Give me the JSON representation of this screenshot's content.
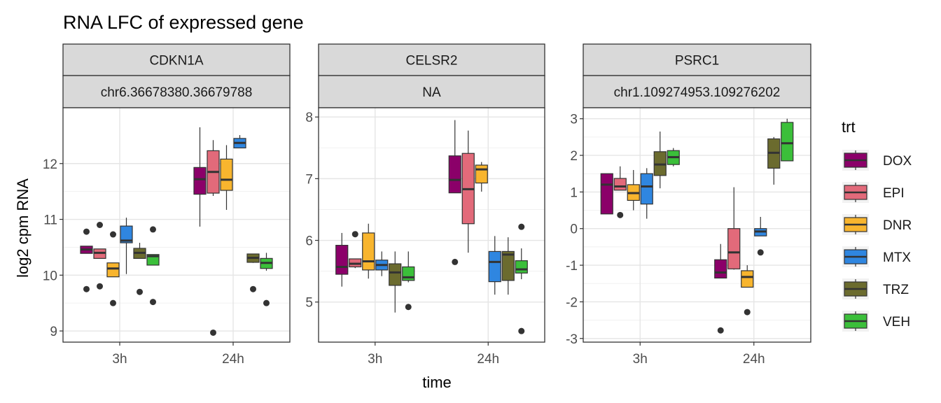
{
  "chart_data": {
    "type": "box",
    "title": "RNA LFC of expressed gene",
    "xlabel": "time",
    "ylabel": "log2 cpm RNA",
    "legend": {
      "title": "trt",
      "position": "right"
    },
    "groups": [
      "DOX",
      "EPI",
      "DNR",
      "MTX",
      "TRZ",
      "VEH"
    ],
    "colors": {
      "DOX": "#8B0069",
      "EPI": "#E26A7A",
      "DNR": "#F8B52E",
      "MTX": "#2F86E0",
      "TRZ": "#6B6B2E",
      "VEH": "#3BBF3A"
    },
    "x_categories": [
      "3h",
      "24h"
    ],
    "panels": [
      {
        "strip_top": "CDKN1A",
        "strip_bottom": "chr6.36678380.36679788",
        "ylim": [
          8.8,
          13.0
        ],
        "yticks": [
          9,
          10,
          11,
          12
        ],
        "boxes": {
          "3h": [
            {
              "trt": "DOX",
              "wlo": 10.43,
              "q1": 10.39,
              "median": 10.46,
              "q3": 10.52,
              "whi": 10.52,
              "outliers": [
                10.78,
                9.75
              ]
            },
            {
              "trt": "EPI",
              "wlo": 10.33,
              "q1": 10.3,
              "median": 10.4,
              "q3": 10.47,
              "whi": 10.47,
              "outliers": [
                10.9,
                9.8
              ]
            },
            {
              "trt": "DNR",
              "wlo": 9.98,
              "q1": 9.97,
              "median": 10.12,
              "q3": 10.22,
              "whi": 10.22,
              "outliers": [
                10.73,
                9.5
              ]
            },
            {
              "trt": "MTX",
              "wlo": 10.02,
              "q1": 10.58,
              "median": 10.62,
              "q3": 10.88,
              "whi": 11.03,
              "outliers": []
            },
            {
              "trt": "TRZ",
              "wlo": 10.3,
              "q1": 10.3,
              "median": 10.4,
              "q3": 10.48,
              "whi": 10.58,
              "outliers": [
                9.7
              ]
            },
            {
              "trt": "VEH",
              "wlo": 10.18,
              "q1": 10.18,
              "median": 10.34,
              "q3": 10.37,
              "whi": 10.37,
              "outliers": [
                10.82,
                9.52
              ]
            }
          ],
          "24h": [
            {
              "trt": "DOX",
              "wlo": 10.87,
              "q1": 11.45,
              "median": 11.72,
              "q3": 11.93,
              "whi": 12.65,
              "outliers": []
            },
            {
              "trt": "EPI",
              "wlo": 11.42,
              "q1": 11.47,
              "median": 11.85,
              "q3": 12.23,
              "whi": 12.42,
              "outliers": [
                8.97
              ]
            },
            {
              "trt": "DNR",
              "wlo": 11.17,
              "q1": 11.52,
              "median": 11.71,
              "q3": 12.08,
              "whi": 12.33,
              "outliers": []
            },
            {
              "trt": "MTX",
              "wlo": 12.28,
              "q1": 12.28,
              "median": 12.37,
              "q3": 12.45,
              "whi": 12.51,
              "outliers": []
            },
            {
              "trt": "TRZ",
              "wlo": 10.22,
              "q1": 10.23,
              "median": 10.31,
              "q3": 10.38,
              "whi": 10.38,
              "outliers": [
                9.75
              ]
            },
            {
              "trt": "VEH",
              "wlo": 10.08,
              "q1": 10.12,
              "median": 10.22,
              "q3": 10.3,
              "whi": 10.4,
              "outliers": [
                9.5
              ]
            }
          ]
        }
      },
      {
        "strip_top": "CELSR2",
        "strip_bottom": "NA",
        "ylim": [
          4.35,
          8.15
        ],
        "yticks": [
          5,
          6,
          7,
          8
        ],
        "boxes": {
          "3h": [
            {
              "trt": "DOX",
              "wlo": 5.25,
              "q1": 5.45,
              "median": 5.57,
              "q3": 5.92,
              "whi": 6.12,
              "outliers": []
            },
            {
              "trt": "EPI",
              "wlo": 5.55,
              "q1": 5.57,
              "median": 5.62,
              "q3": 5.7,
              "whi": 5.7,
              "outliers": [
                6.1
              ]
            },
            {
              "trt": "DNR",
              "wlo": 5.38,
              "q1": 5.52,
              "median": 5.66,
              "q3": 6.12,
              "whi": 6.27,
              "outliers": []
            },
            {
              "trt": "MTX",
              "wlo": 5.42,
              "q1": 5.52,
              "median": 5.6,
              "q3": 5.68,
              "whi": 5.82,
              "outliers": []
            },
            {
              "trt": "TRZ",
              "wlo": 4.83,
              "q1": 5.27,
              "median": 5.48,
              "q3": 5.62,
              "whi": 5.82,
              "outliers": []
            },
            {
              "trt": "VEH",
              "wlo": 5.32,
              "q1": 5.35,
              "median": 5.4,
              "q3": 5.57,
              "whi": 5.82,
              "outliers": [
                4.92
              ]
            }
          ],
          "24h": [
            {
              "trt": "DOX",
              "wlo": 6.77,
              "q1": 6.77,
              "median": 6.98,
              "q3": 7.37,
              "whi": 7.95,
              "outliers": [
                5.65
              ]
            },
            {
              "trt": "EPI",
              "wlo": 5.8,
              "q1": 6.27,
              "median": 6.83,
              "q3": 7.41,
              "whi": 7.78,
              "outliers": []
            },
            {
              "trt": "DNR",
              "wlo": 6.79,
              "q1": 6.93,
              "median": 7.15,
              "q3": 7.22,
              "whi": 7.27,
              "outliers": []
            },
            {
              "trt": "MTX",
              "wlo": 5.12,
              "q1": 5.33,
              "median": 5.65,
              "q3": 5.82,
              "whi": 6.07,
              "outliers": []
            },
            {
              "trt": "TRZ",
              "wlo": 5.12,
              "q1": 5.35,
              "median": 5.77,
              "q3": 5.82,
              "whi": 6.05,
              "outliers": []
            },
            {
              "trt": "VEH",
              "wlo": 5.37,
              "q1": 5.47,
              "median": 5.53,
              "q3": 5.67,
              "whi": 5.87,
              "outliers": [
                6.22,
                4.53
              ]
            }
          ]
        }
      },
      {
        "strip_top": "PSRC1",
        "strip_bottom": "chr1.109274953.109276202",
        "ylim": [
          -3.1,
          3.3
        ],
        "yticks": [
          -3,
          -2,
          -1,
          0,
          1,
          2,
          3
        ],
        "boxes": {
          "3h": [
            {
              "trt": "DOX",
              "wlo": 0.4,
              "q1": 0.4,
              "median": 1.2,
              "q3": 1.5,
              "whi": 1.5,
              "outliers": []
            },
            {
              "trt": "EPI",
              "wlo": 1.05,
              "q1": 1.05,
              "median": 1.15,
              "q3": 1.37,
              "whi": 1.7,
              "outliers": [
                0.37
              ]
            },
            {
              "trt": "DNR",
              "wlo": 0.5,
              "q1": 0.77,
              "median": 0.97,
              "q3": 1.2,
              "whi": 1.6,
              "outliers": []
            },
            {
              "trt": "MTX",
              "wlo": 0.27,
              "q1": 0.67,
              "median": 1.15,
              "q3": 1.5,
              "whi": 1.65,
              "outliers": []
            },
            {
              "trt": "TRZ",
              "wlo": 1.1,
              "q1": 1.45,
              "median": 1.75,
              "q3": 2.1,
              "whi": 2.65,
              "outliers": []
            },
            {
              "trt": "VEH",
              "wlo": 1.7,
              "q1": 1.75,
              "median": 1.95,
              "q3": 2.13,
              "whi": 2.2,
              "outliers": []
            }
          ],
          "24h": [
            {
              "trt": "DOX",
              "wlo": -1.35,
              "q1": -1.35,
              "median": -1.2,
              "q3": -0.85,
              "whi": -0.42,
              "outliers": [
                -2.78
              ]
            },
            {
              "trt": "EPI",
              "wlo": -1.12,
              "q1": -1.1,
              "median": -0.65,
              "q3": 0.0,
              "whi": 1.13,
              "outliers": []
            },
            {
              "trt": "DNR",
              "wlo": -1.6,
              "q1": -1.6,
              "median": -1.32,
              "q3": -1.15,
              "whi": -1.0,
              "outliers": [
                -2.28
              ]
            },
            {
              "trt": "MTX",
              "wlo": -0.2,
              "q1": -0.2,
              "median": -0.08,
              "q3": 0.0,
              "whi": 0.32,
              "outliers": [
                -0.65
              ]
            },
            {
              "trt": "TRZ",
              "wlo": 1.2,
              "q1": 1.65,
              "median": 2.07,
              "q3": 2.45,
              "whi": 2.5,
              "outliers": []
            },
            {
              "trt": "VEH",
              "wlo": 1.85,
              "q1": 1.85,
              "median": 2.33,
              "q3": 2.9,
              "whi": 3.0,
              "outliers": []
            }
          ]
        }
      }
    ]
  }
}
